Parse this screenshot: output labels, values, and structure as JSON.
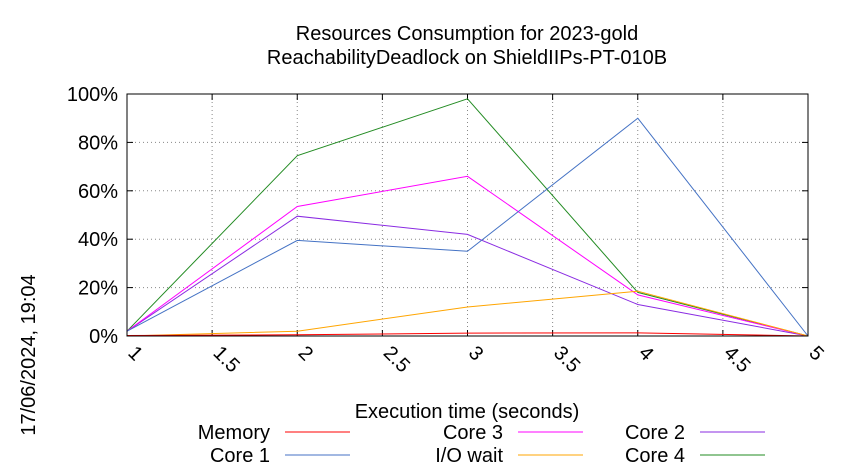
{
  "chart_data": {
    "type": "line",
    "title": "Resources Consumption for 2023-gold",
    "subtitle": "ReachabilityDeadlock on ShieldIIPs-PT-010B",
    "xlabel": "Execution time (seconds)",
    "ylabel": "",
    "timestamp": "17/06/2024, 19:04",
    "xlim": [
      1,
      5
    ],
    "ylim": [
      0,
      100
    ],
    "x_ticks": [
      "1",
      "1.5",
      "2",
      "2.5",
      "3",
      "3.5",
      "4",
      "4.5",
      "5"
    ],
    "y_ticks": [
      "0%",
      "20%",
      "40%",
      "60%",
      "80%",
      "100%"
    ],
    "grid": true,
    "legend_position": "bottom",
    "x": [
      1,
      2,
      3,
      4,
      5
    ],
    "series": [
      {
        "name": "Memory",
        "color": "#ff0000",
        "values": [
          0.2,
          0.5,
          1.2,
          1.3,
          0
        ]
      },
      {
        "name": "Core 1",
        "color": "#4472c4",
        "values": [
          2,
          39.5,
          35,
          90,
          0
        ]
      },
      {
        "name": "Core 3",
        "color": "#ff00ff",
        "values": [
          2,
          53.5,
          66,
          17,
          0
        ]
      },
      {
        "name": "I/O wait",
        "color": "#ffa500",
        "values": [
          0,
          2,
          12,
          18.5,
          0
        ]
      },
      {
        "name": "Core 2",
        "color": "#8a2be2",
        "values": [
          2,
          49.5,
          42,
          13,
          0
        ]
      },
      {
        "name": "Core 4",
        "color": "#228b22",
        "values": [
          2,
          74.5,
          98,
          18,
          0
        ]
      }
    ]
  }
}
